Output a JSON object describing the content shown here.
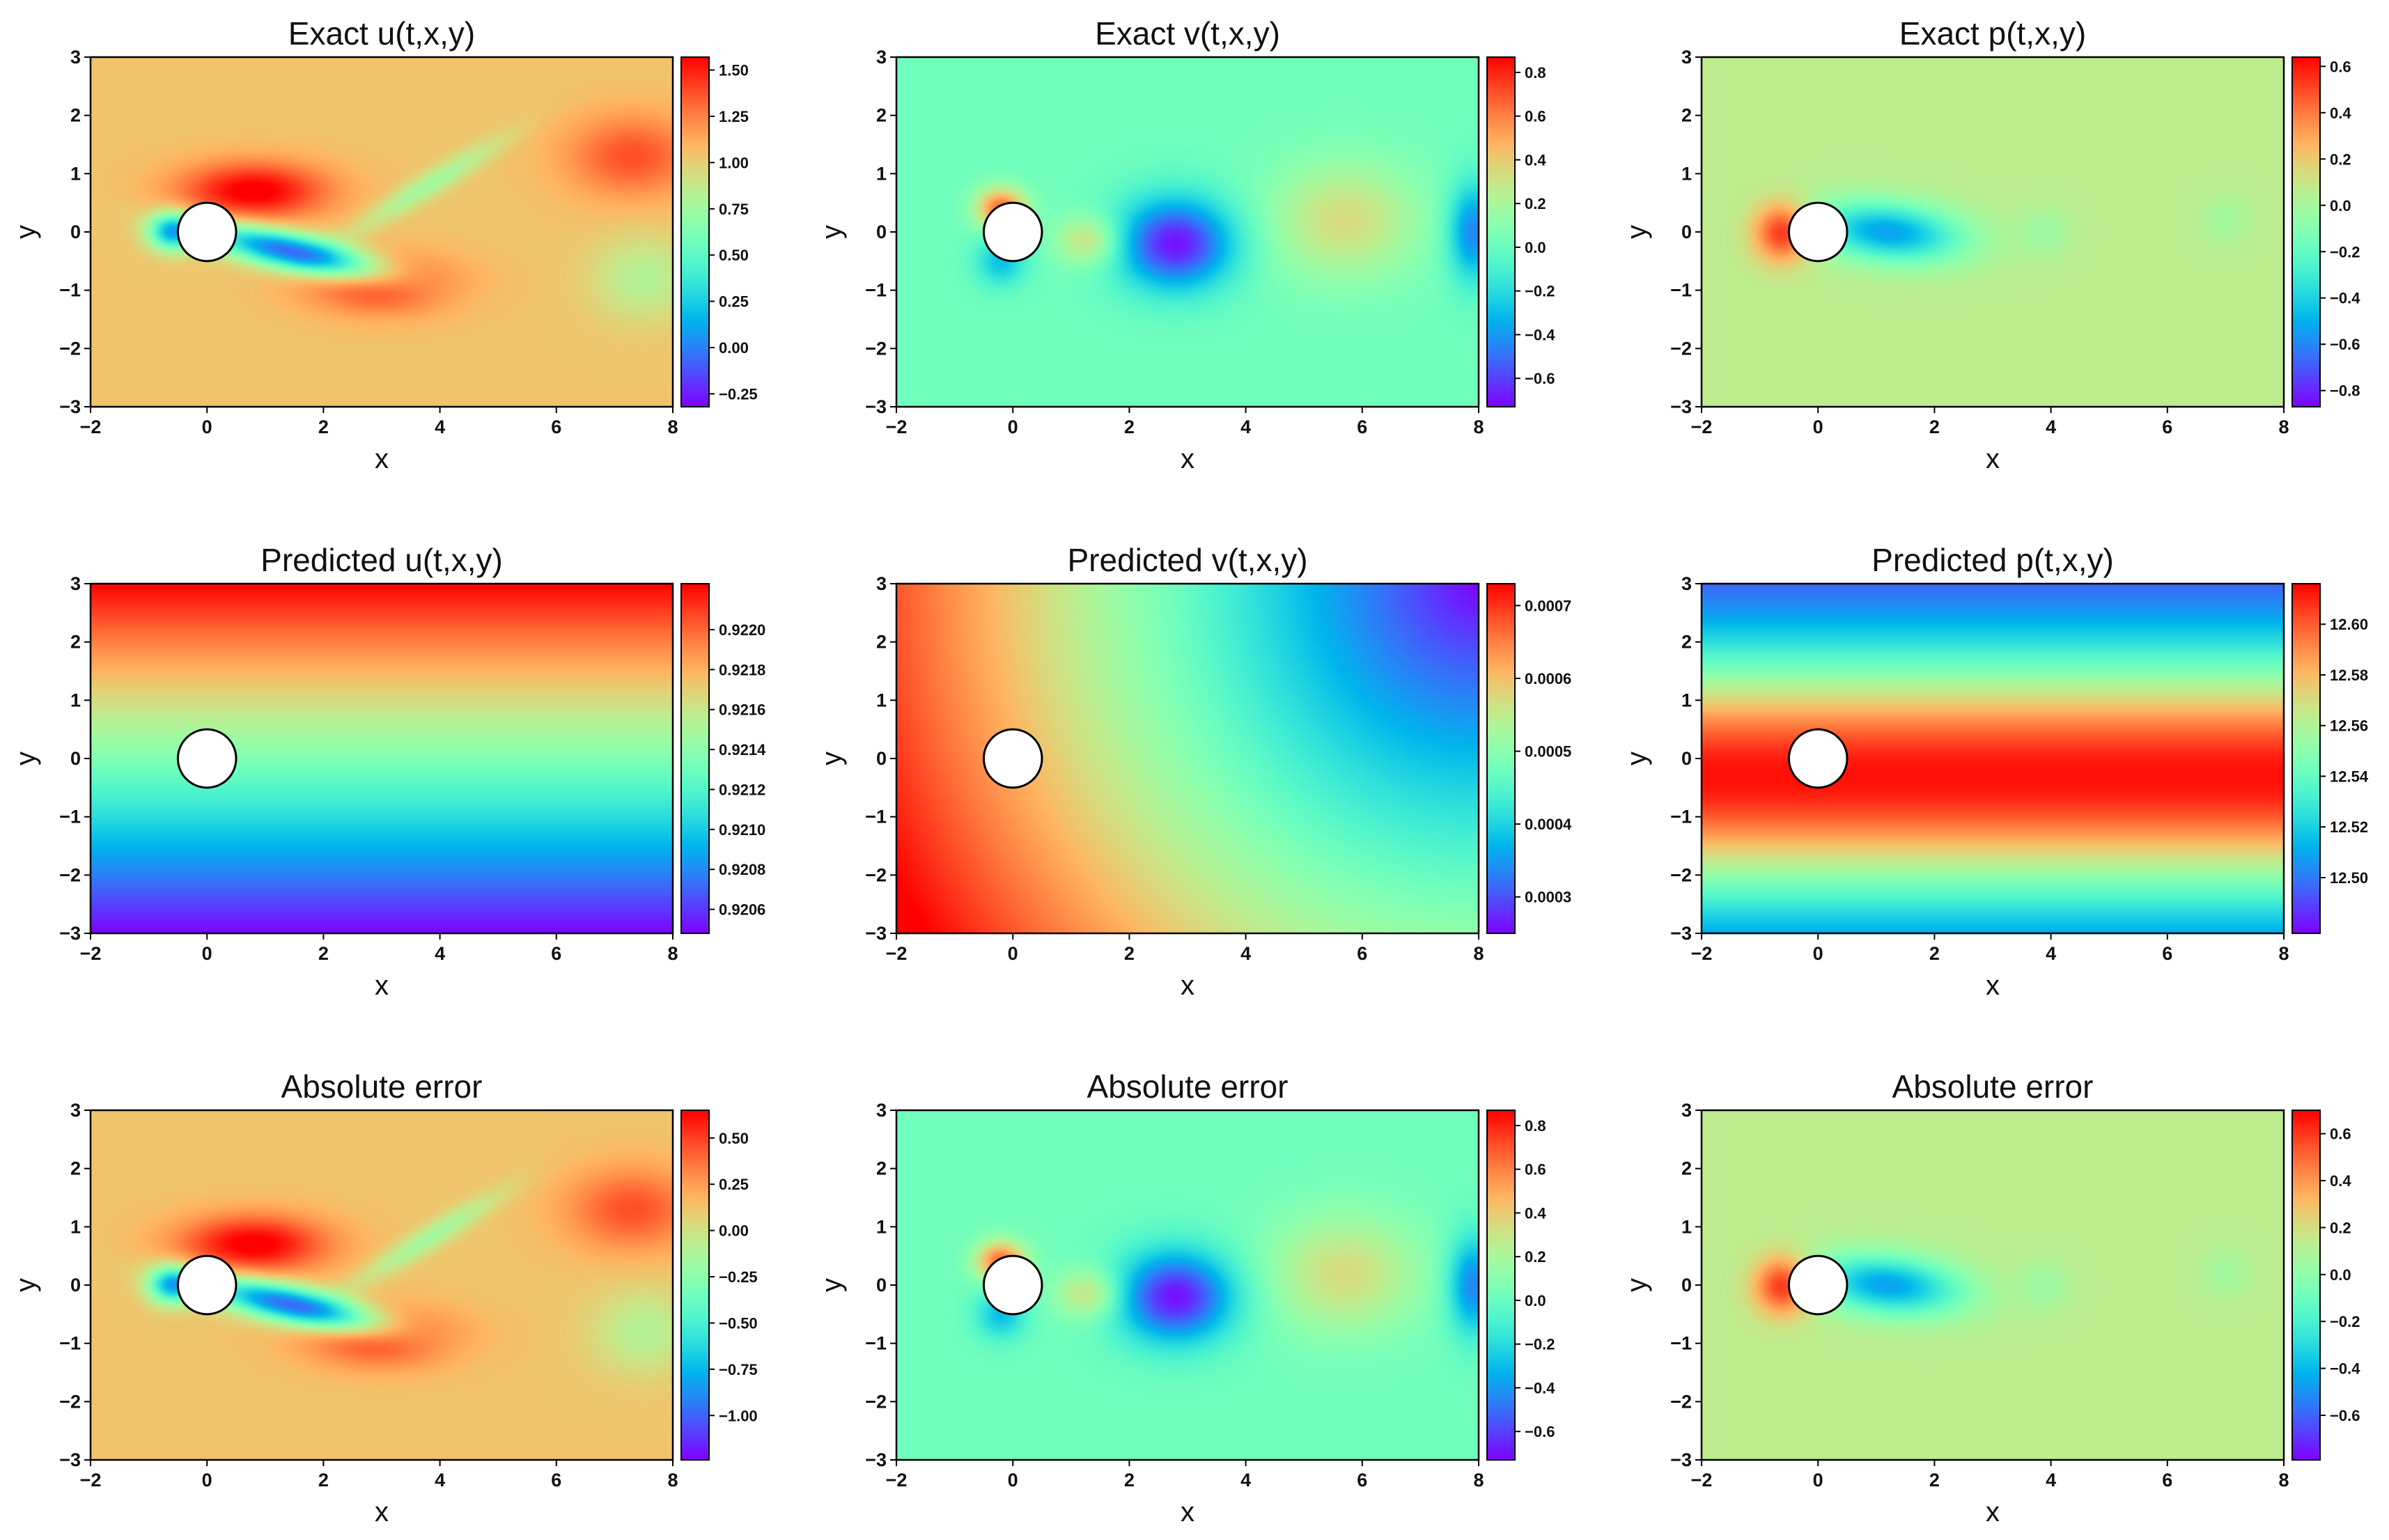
{
  "chart_data": [
    {
      "type": "heatmap",
      "title": "Exact u(t,x,y)",
      "xlabel": "x",
      "ylabel": "y",
      "xlim": [
        -2,
        8
      ],
      "ylim": [
        -3,
        3
      ],
      "xticks": [
        "−2",
        "0",
        "2",
        "4",
        "6",
        "8"
      ],
      "yticks": [
        "3",
        "2",
        "1",
        "0",
        "−1",
        "−2",
        "−3"
      ],
      "colorbar": {
        "min": -0.32,
        "max": 1.57,
        "ticks": [
          "1.50",
          "1.25",
          "1.00",
          "0.75",
          "0.50",
          "0.25",
          "0.00",
          "−0.25"
        ],
        "tick_values": [
          1.5,
          1.25,
          1.0,
          0.75,
          0.5,
          0.25,
          0.0,
          -0.25
        ]
      },
      "cylinder": {
        "center": [
          0,
          0
        ],
        "radius": 0.5
      },
      "field": "exact_u"
    },
    {
      "type": "heatmap",
      "title": "Exact v(t,x,y)",
      "xlabel": "x",
      "ylabel": "y",
      "xlim": [
        -2,
        8
      ],
      "ylim": [
        -3,
        3
      ],
      "xticks": [
        "−2",
        "0",
        "2",
        "4",
        "6",
        "8"
      ],
      "yticks": [
        "3",
        "2",
        "1",
        "0",
        "−1",
        "−2",
        "−3"
      ],
      "colorbar": {
        "min": -0.73,
        "max": 0.87,
        "ticks": [
          "0.8",
          "0.6",
          "0.4",
          "0.2",
          "0.0",
          "−0.2",
          "−0.4",
          "−0.6"
        ],
        "tick_values": [
          0.8,
          0.6,
          0.4,
          0.2,
          0.0,
          -0.2,
          -0.4,
          -0.6
        ]
      },
      "cylinder": {
        "center": [
          0,
          0
        ],
        "radius": 0.5
      },
      "field": "exact_v"
    },
    {
      "type": "heatmap",
      "title": "Exact p(t,x,y)",
      "xlabel": "x",
      "ylabel": "y",
      "xlim": [
        -2,
        8
      ],
      "ylim": [
        -3,
        3
      ],
      "xticks": [
        "−2",
        "0",
        "2",
        "4",
        "6",
        "8"
      ],
      "yticks": [
        "3",
        "2",
        "1",
        "0",
        "−1",
        "−2",
        "−3"
      ],
      "colorbar": {
        "min": -0.87,
        "max": 0.64,
        "ticks": [
          "0.6",
          "0.4",
          "0.2",
          "0.0",
          "−0.2",
          "−0.4",
          "−0.6",
          "−0.8"
        ],
        "tick_values": [
          0.6,
          0.4,
          0.2,
          0.0,
          -0.2,
          -0.4,
          -0.6,
          -0.8
        ]
      },
      "cylinder": {
        "center": [
          0,
          0
        ],
        "radius": 0.5
      },
      "field": "exact_p"
    },
    {
      "type": "heatmap",
      "title": "Predicted u(t,x,y)",
      "xlabel": "x",
      "ylabel": "y",
      "xlim": [
        -2,
        8
      ],
      "ylim": [
        -3,
        3
      ],
      "xticks": [
        "−2",
        "0",
        "2",
        "4",
        "6",
        "8"
      ],
      "yticks": [
        "3",
        "2",
        "1",
        "0",
        "−1",
        "−2",
        "−3"
      ],
      "colorbar": {
        "min": 0.92048,
        "max": 0.92223,
        "ticks": [
          "0.9220",
          "0.9218",
          "0.9216",
          "0.9214",
          "0.9212",
          "0.9210",
          "0.9208",
          "0.9206"
        ],
        "tick_values": [
          0.922,
          0.9218,
          0.9216,
          0.9214,
          0.9212,
          0.921,
          0.9208,
          0.9206
        ]
      },
      "cylinder": {
        "center": [
          0,
          0
        ],
        "radius": 0.5
      },
      "field": "pred_u"
    },
    {
      "type": "heatmap",
      "title": "Predicted v(t,x,y)",
      "xlabel": "x",
      "ylabel": "y",
      "xlim": [
        -2,
        8
      ],
      "ylim": [
        -3,
        3
      ],
      "xticks": [
        "−2",
        "0",
        "2",
        "4",
        "6",
        "8"
      ],
      "yticks": [
        "3",
        "2",
        "1",
        "0",
        "−1",
        "−2",
        "−3"
      ],
      "colorbar": {
        "min": 0.00025,
        "max": 0.00073,
        "ticks": [
          "0.0007",
          "0.0006",
          "0.0005",
          "0.0004",
          "0.0003"
        ],
        "tick_values": [
          0.0007,
          0.0006,
          0.0005,
          0.0004,
          0.0003
        ]
      },
      "cylinder": {
        "center": [
          0,
          0
        ],
        "radius": 0.5
      },
      "field": "pred_v"
    },
    {
      "type": "heatmap",
      "title": "Predicted p(t,x,y)",
      "xlabel": "x",
      "ylabel": "y",
      "xlim": [
        -2,
        8
      ],
      "ylim": [
        -3,
        3
      ],
      "xticks": [
        "−2",
        "0",
        "2",
        "4",
        "6",
        "8"
      ],
      "yticks": [
        "3",
        "2",
        "1",
        "0",
        "−1",
        "−2",
        "−3"
      ],
      "colorbar": {
        "min": 12.478,
        "max": 12.616,
        "ticks": [
          "12.60",
          "12.58",
          "12.56",
          "12.54",
          "12.52",
          "12.50"
        ],
        "tick_values": [
          12.6,
          12.58,
          12.56,
          12.54,
          12.52,
          12.5
        ]
      },
      "cylinder": {
        "center": [
          0,
          0
        ],
        "radius": 0.5
      },
      "field": "pred_p"
    },
    {
      "type": "heatmap",
      "title": "Absolute error",
      "xlabel": "x",
      "ylabel": "y",
      "xlim": [
        -2,
        8
      ],
      "ylim": [
        -3,
        3
      ],
      "xticks": [
        "−2",
        "0",
        "2",
        "4",
        "6",
        "8"
      ],
      "yticks": [
        "3",
        "2",
        "1",
        "0",
        "−1",
        "−2",
        "−3"
      ],
      "colorbar": {
        "min": -1.24,
        "max": 0.65,
        "ticks": [
          "0.50",
          "0.25",
          "0.00",
          "−0.25",
          "−0.50",
          "−0.75",
          "−1.00"
        ],
        "tick_values": [
          0.5,
          0.25,
          0.0,
          -0.25,
          -0.5,
          -0.75,
          -1.0
        ]
      },
      "cylinder": {
        "center": [
          0,
          0
        ],
        "radius": 0.5
      },
      "field": "err_u"
    },
    {
      "type": "heatmap",
      "title": "Absolute error",
      "xlabel": "x",
      "ylabel": "y",
      "xlim": [
        -2,
        8
      ],
      "ylim": [
        -3,
        3
      ],
      "xticks": [
        "−2",
        "0",
        "2",
        "4",
        "6",
        "8"
      ],
      "yticks": [
        "3",
        "2",
        "1",
        "0",
        "−1",
        "−2",
        "−3"
      ],
      "colorbar": {
        "min": -0.73,
        "max": 0.87,
        "ticks": [
          "0.8",
          "0.6",
          "0.4",
          "0.2",
          "0.0",
          "−0.2",
          "−0.4",
          "−0.6"
        ],
        "tick_values": [
          0.8,
          0.6,
          0.4,
          0.2,
          0.0,
          -0.2,
          -0.4,
          -0.6
        ]
      },
      "cylinder": {
        "center": [
          0,
          0
        ],
        "radius": 0.5
      },
      "field": "err_v"
    },
    {
      "type": "heatmap",
      "title": "Absolute error",
      "xlabel": "x",
      "ylabel": "y",
      "xlim": [
        -2,
        8
      ],
      "ylim": [
        -3,
        3
      ],
      "xticks": [
        "−2",
        "0",
        "2",
        "4",
        "6",
        "8"
      ],
      "yticks": [
        "3",
        "2",
        "1",
        "0",
        "−1",
        "−2",
        "−3"
      ],
      "colorbar": {
        "min": -0.79,
        "max": 0.7,
        "ticks": [
          "0.6",
          "0.4",
          "0.2",
          "0.0",
          "−0.2",
          "−0.4",
          "−0.6"
        ],
        "tick_values": [
          0.6,
          0.4,
          0.2,
          0.0,
          -0.2,
          -0.4,
          -0.6
        ]
      },
      "cylinder": {
        "center": [
          0,
          0
        ],
        "radius": 0.5
      },
      "field": "err_p"
    }
  ]
}
